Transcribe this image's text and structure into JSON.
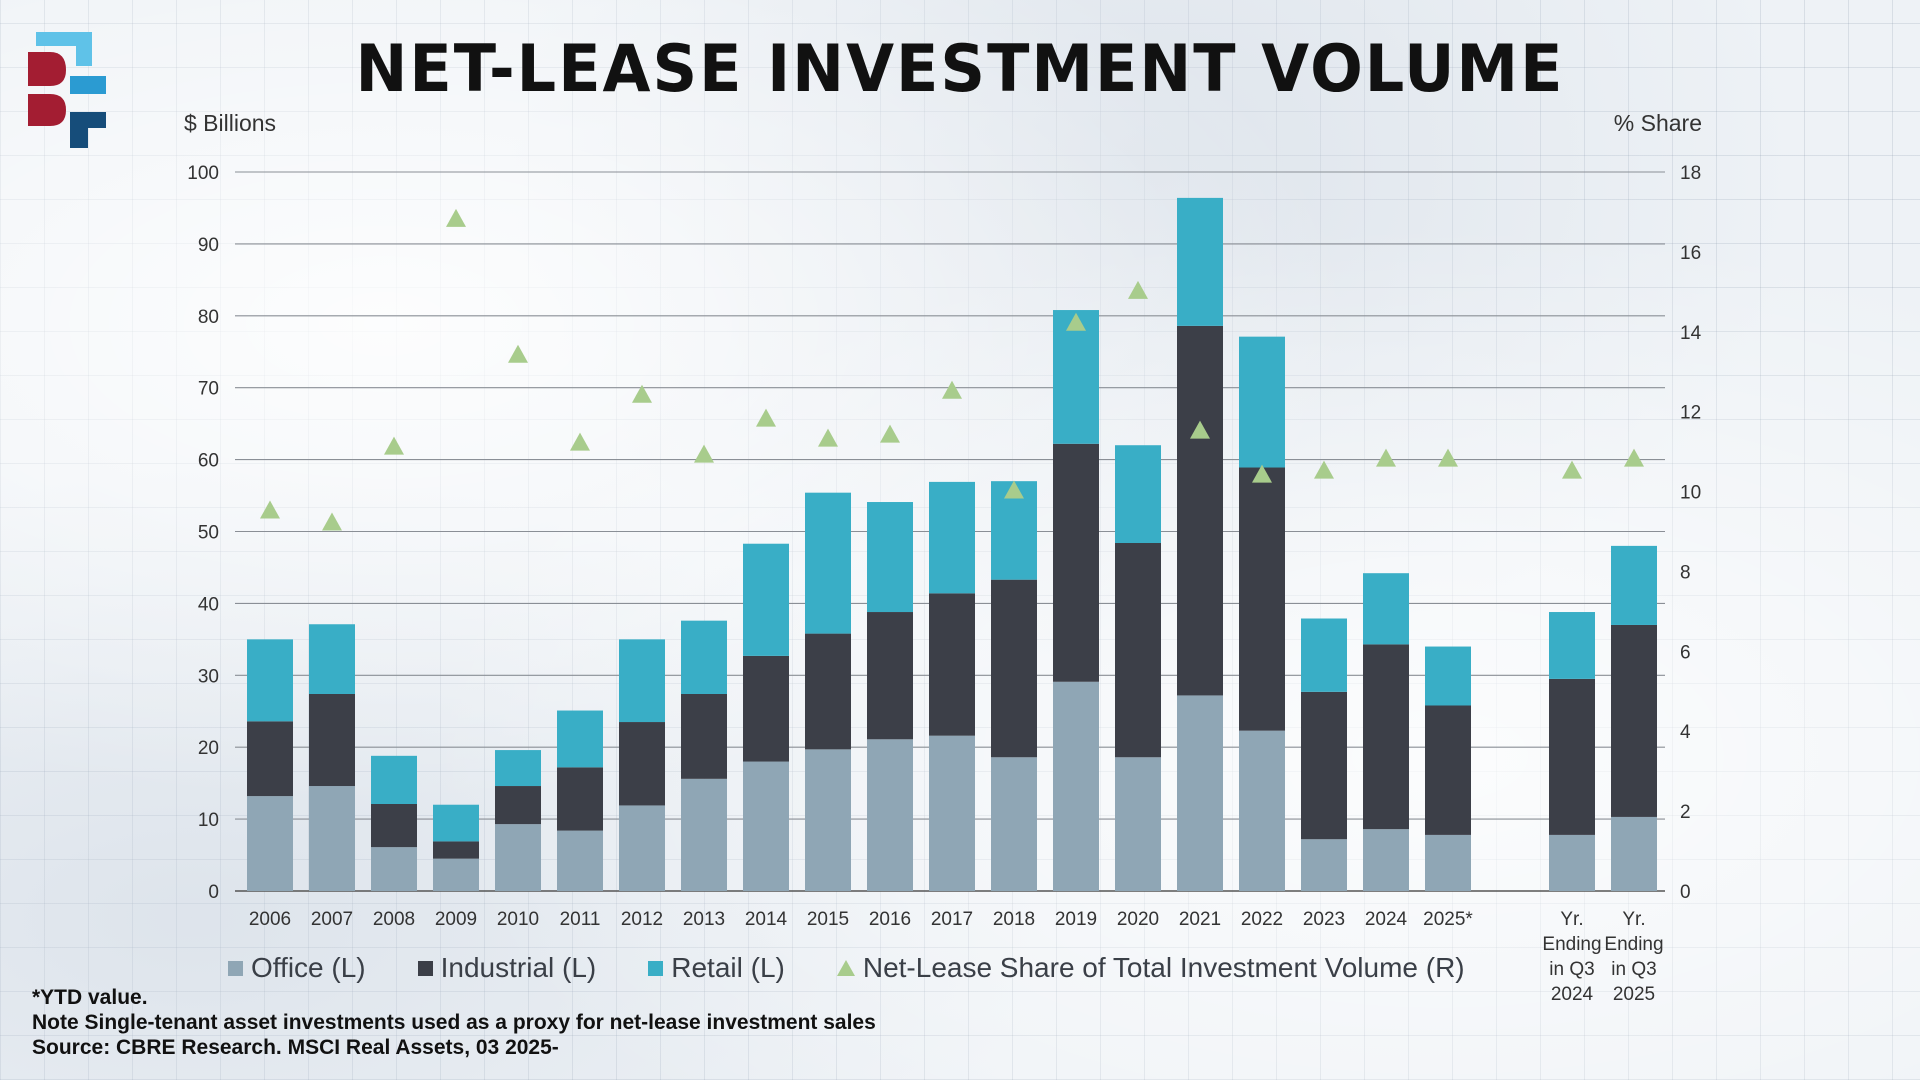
{
  "title": "NET-LEASE INVESTMENT VOLUME",
  "colors": {
    "office": "#8fa6b5",
    "industrial": "#3c3f48",
    "retail": "#39aec6",
    "share": "#a8cc8c",
    "logo_red": "#a31d32",
    "logo_light_blue": "#5fc2e8",
    "logo_mid_blue": "#2b9bd2",
    "logo_dark_blue": "#164d7a"
  },
  "logo": {
    "icon": "be-logo-icon"
  },
  "chart_data": {
    "type": "bar",
    "stacked": true,
    "categories": [
      "2006",
      "2007",
      "2008",
      "2009",
      "2010",
      "2011",
      "2012",
      "2013",
      "2014",
      "2015",
      "2016",
      "2017",
      "2018",
      "2019",
      "2020",
      "2021",
      "2022",
      "2023",
      "2024",
      "2025*",
      "",
      "Yr.\nEnding\nin Q3\n2024",
      "Yr.\nEnding\nin Q3\n2025"
    ],
    "series": [
      {
        "name": "Office (L)",
        "axis": "left",
        "values": [
          13.2,
          14.6,
          6.1,
          4.5,
          9.3,
          8.4,
          11.9,
          15.6,
          18.0,
          19.7,
          21.1,
          21.6,
          18.6,
          29.1,
          18.6,
          27.2,
          22.3,
          7.2,
          8.6,
          7.8,
          null,
          7.8,
          10.3
        ]
      },
      {
        "name": "Industrial (L)",
        "axis": "left",
        "values": [
          10.4,
          12.8,
          6.0,
          2.4,
          5.3,
          8.8,
          11.6,
          11.8,
          14.7,
          16.1,
          17.7,
          19.8,
          24.7,
          33.1,
          29.8,
          51.4,
          36.6,
          20.5,
          25.7,
          18.0,
          null,
          21.7,
          26.7
        ]
      },
      {
        "name": "Retail (L)",
        "axis": "left",
        "values": [
          11.4,
          9.7,
          6.7,
          5.1,
          5.0,
          7.9,
          11.5,
          10.2,
          15.6,
          19.6,
          15.3,
          15.5,
          13.7,
          18.6,
          13.6,
          17.8,
          18.2,
          10.2,
          9.9,
          8.2,
          null,
          9.3,
          11.0
        ]
      },
      {
        "name": "Net-Lease Share of Total Investment Volume (R)",
        "axis": "right",
        "type": "scatter",
        "marker": "triangle",
        "values": [
          9.5,
          9.2,
          11.1,
          16.8,
          13.4,
          11.2,
          12.4,
          10.9,
          11.8,
          11.3,
          11.4,
          12.5,
          10.0,
          14.2,
          15.0,
          11.5,
          10.4,
          10.5,
          10.8,
          10.8,
          null,
          10.5,
          10.8
        ]
      }
    ],
    "ylabel": "$ Billions",
    "ylabel_right": "% Share",
    "ylim": [
      0,
      100
    ],
    "ylim_right": [
      0,
      18
    ],
    "yticks": [
      "0",
      "10",
      "20",
      "30",
      "40",
      "50",
      "60",
      "70",
      "80",
      "90",
      "100"
    ],
    "yticks_right": [
      "0",
      "2",
      "4",
      "6",
      "8",
      "10",
      "12",
      "14",
      "16",
      "18"
    ],
    "grid": true,
    "legend_position": "bottom"
  },
  "footnotes": [
    "*YTD value.",
    "Note Single-tenant asset investments used as a proxy for net-lease investment sales",
    "Source: CBRE Research. MSCI Real Assets, 03 2025-"
  ]
}
